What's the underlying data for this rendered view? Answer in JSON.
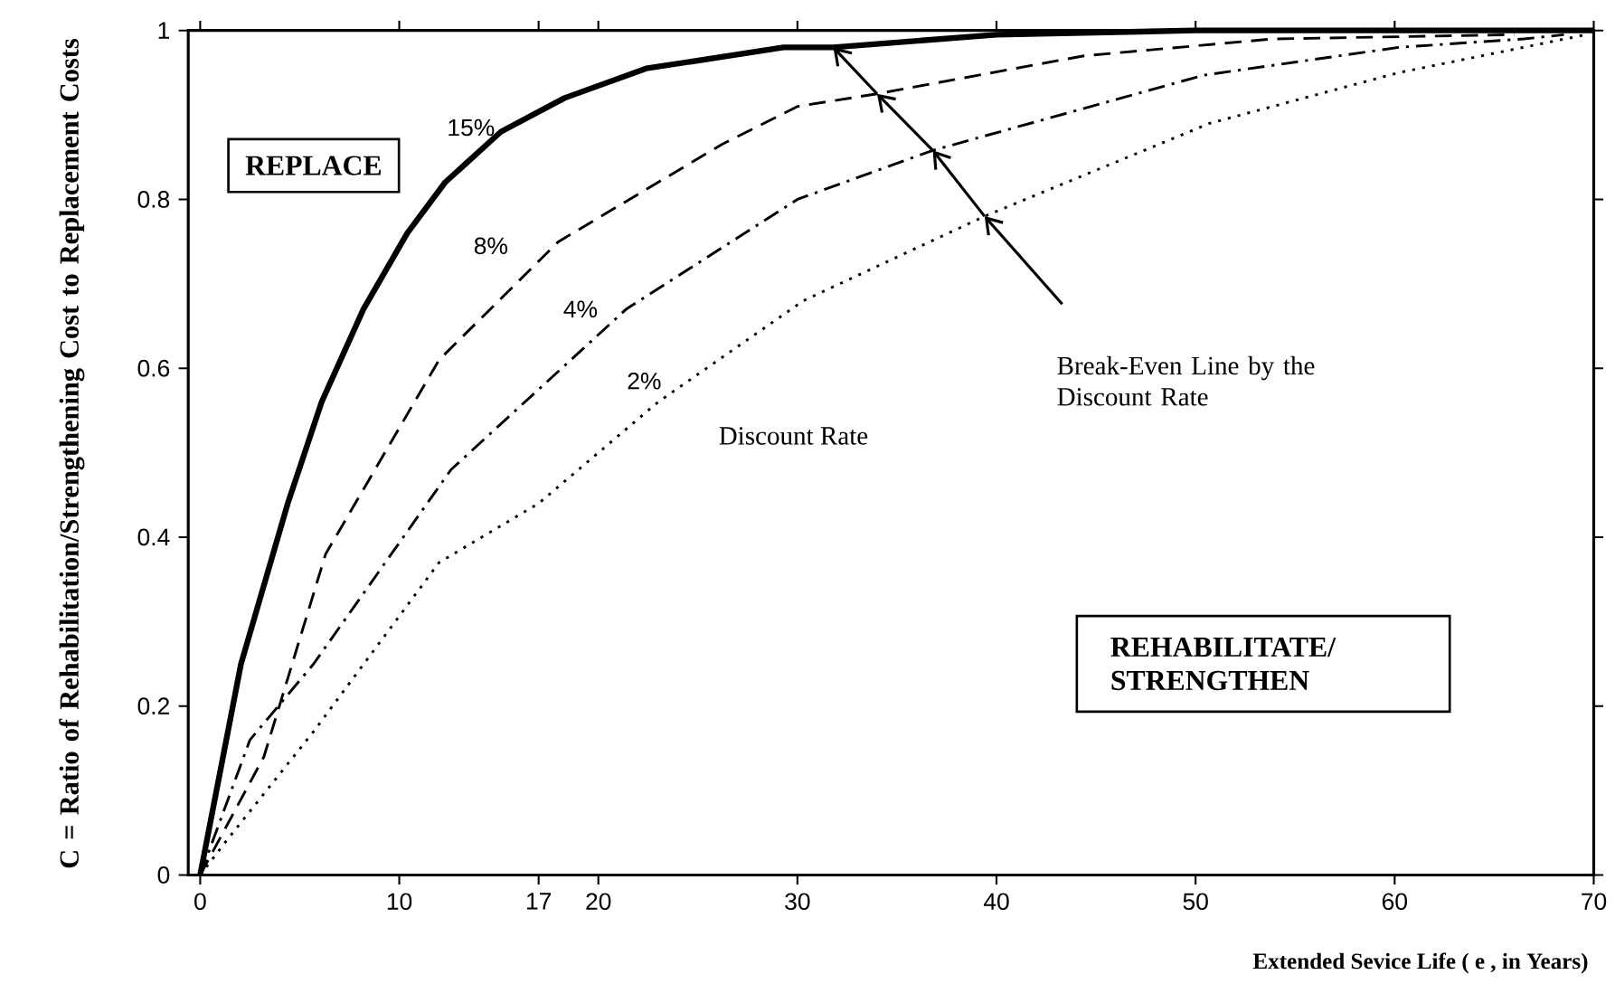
{
  "chart_data": {
    "type": "line",
    "xlabel": "Extended Sevice Life ( e , in Years)",
    "ylabel": "C = Ratio of Rehabilitation/Strengthening Cost to Replacement Costs",
    "xlim": [
      -0.6,
      70
    ],
    "ylim": [
      0,
      1
    ],
    "xticks": [
      0,
      10,
      17,
      20,
      30,
      40,
      50,
      60,
      70
    ],
    "yticks": [
      0,
      0.2,
      0.4,
      0.6,
      0.8,
      1
    ],
    "grid": false,
    "marker": "none",
    "series": [
      {
        "color": "#000000",
        "line_style": "solid",
        "x": [
          0,
          2.05,
          4.4,
          6.1,
          8.2,
          10.4,
          12.3,
          15.1,
          18.3,
          22.4,
          29.3,
          31.8,
          40,
          50,
          70
        ],
        "values": [
          0,
          0.25,
          0.44,
          0.56,
          0.67,
          0.76,
          0.82,
          0.88,
          0.92,
          0.955,
          0.98,
          0.98,
          0.995,
          1,
          1
        ]
      },
      {
        "color": "#000000",
        "line_style": "dashed",
        "x": [
          0,
          3.2,
          6.3,
          12,
          18,
          26.2,
          30,
          34,
          44.4,
          53.9,
          66
        ],
        "values": [
          0,
          0.14,
          0.38,
          0.61,
          0.75,
          0.865,
          0.91,
          0.925,
          0.97,
          0.99,
          0.995
        ]
      },
      {
        "color": "#000000",
        "line_style": "dashdot",
        "x": [
          0,
          2.5,
          5.7,
          12.6,
          21.4,
          30,
          36.8,
          50.4,
          60.2,
          66.5,
          68.5
        ],
        "values": [
          0,
          0.16,
          0.25,
          0.48,
          0.67,
          0.8,
          0.858,
          0.947,
          0.98,
          0.99,
          0.995
        ]
      },
      {
        "color": "#000000",
        "line_style": "dotted",
        "x": [
          0,
          1.3,
          5.7,
          12,
          17,
          23,
          30.3,
          39.4,
          50.7,
          60.2,
          69.6
        ],
        "values": [
          0,
          0.04,
          0.17,
          0.37,
          0.44,
          0.56,
          0.68,
          0.78,
          0.89,
          0.95,
          0.995
        ]
      }
    ],
    "annotations": [
      "REPLACE",
      "REHABILITATE/ STRENGTHEN",
      "Break-Even Line by the Discount Rate",
      "Discount Rate",
      "15%",
      "8%",
      "4%",
      "2%"
    ]
  }
}
